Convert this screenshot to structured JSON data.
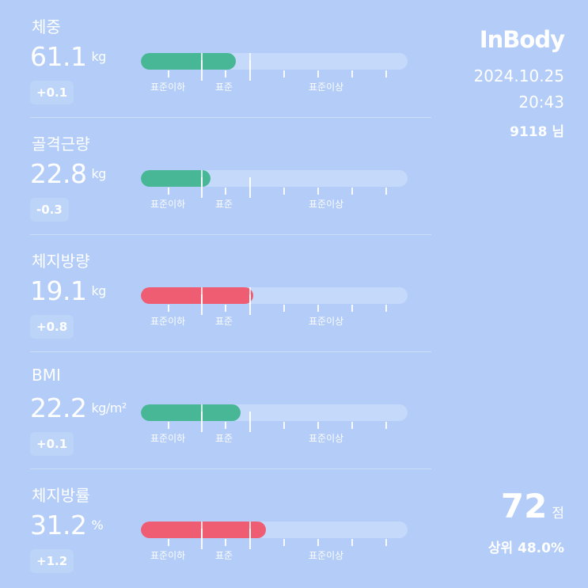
{
  "header": {
    "logo": "InBody",
    "date": "2024.10.25",
    "time": "20:43",
    "user": "9118 님"
  },
  "score": {
    "value": "72",
    "unit": "점",
    "rank": "상위 48.0%"
  },
  "range_labels": {
    "below": "표준이하",
    "standard": "표준",
    "above": "표준이상"
  },
  "metrics": [
    {
      "name": "체중",
      "value": "61.1",
      "unit": "kg",
      "delta": "+0.1",
      "status_color": "#48b796",
      "bar_fill_fraction": 0.355
    },
    {
      "name": "골격근량",
      "value": "22.8",
      "unit": "kg",
      "delta": "-0.3",
      "status_color": "#48b796",
      "bar_fill_fraction": 0.26
    },
    {
      "name": "체지방량",
      "value": "19.1",
      "unit": "kg",
      "delta": "+0.8",
      "status_color": "#ef5d73",
      "bar_fill_fraction": 0.42
    },
    {
      "name": "BMI",
      "value": "22.2",
      "unit": "kg/m²",
      "delta": "+0.1",
      "status_color": "#48b796",
      "bar_fill_fraction": 0.375
    },
    {
      "name": "체지방률",
      "value": "31.2",
      "unit": "%",
      "delta": "+1.2",
      "status_color": "#ef5d73",
      "bar_fill_fraction": 0.47
    }
  ]
}
